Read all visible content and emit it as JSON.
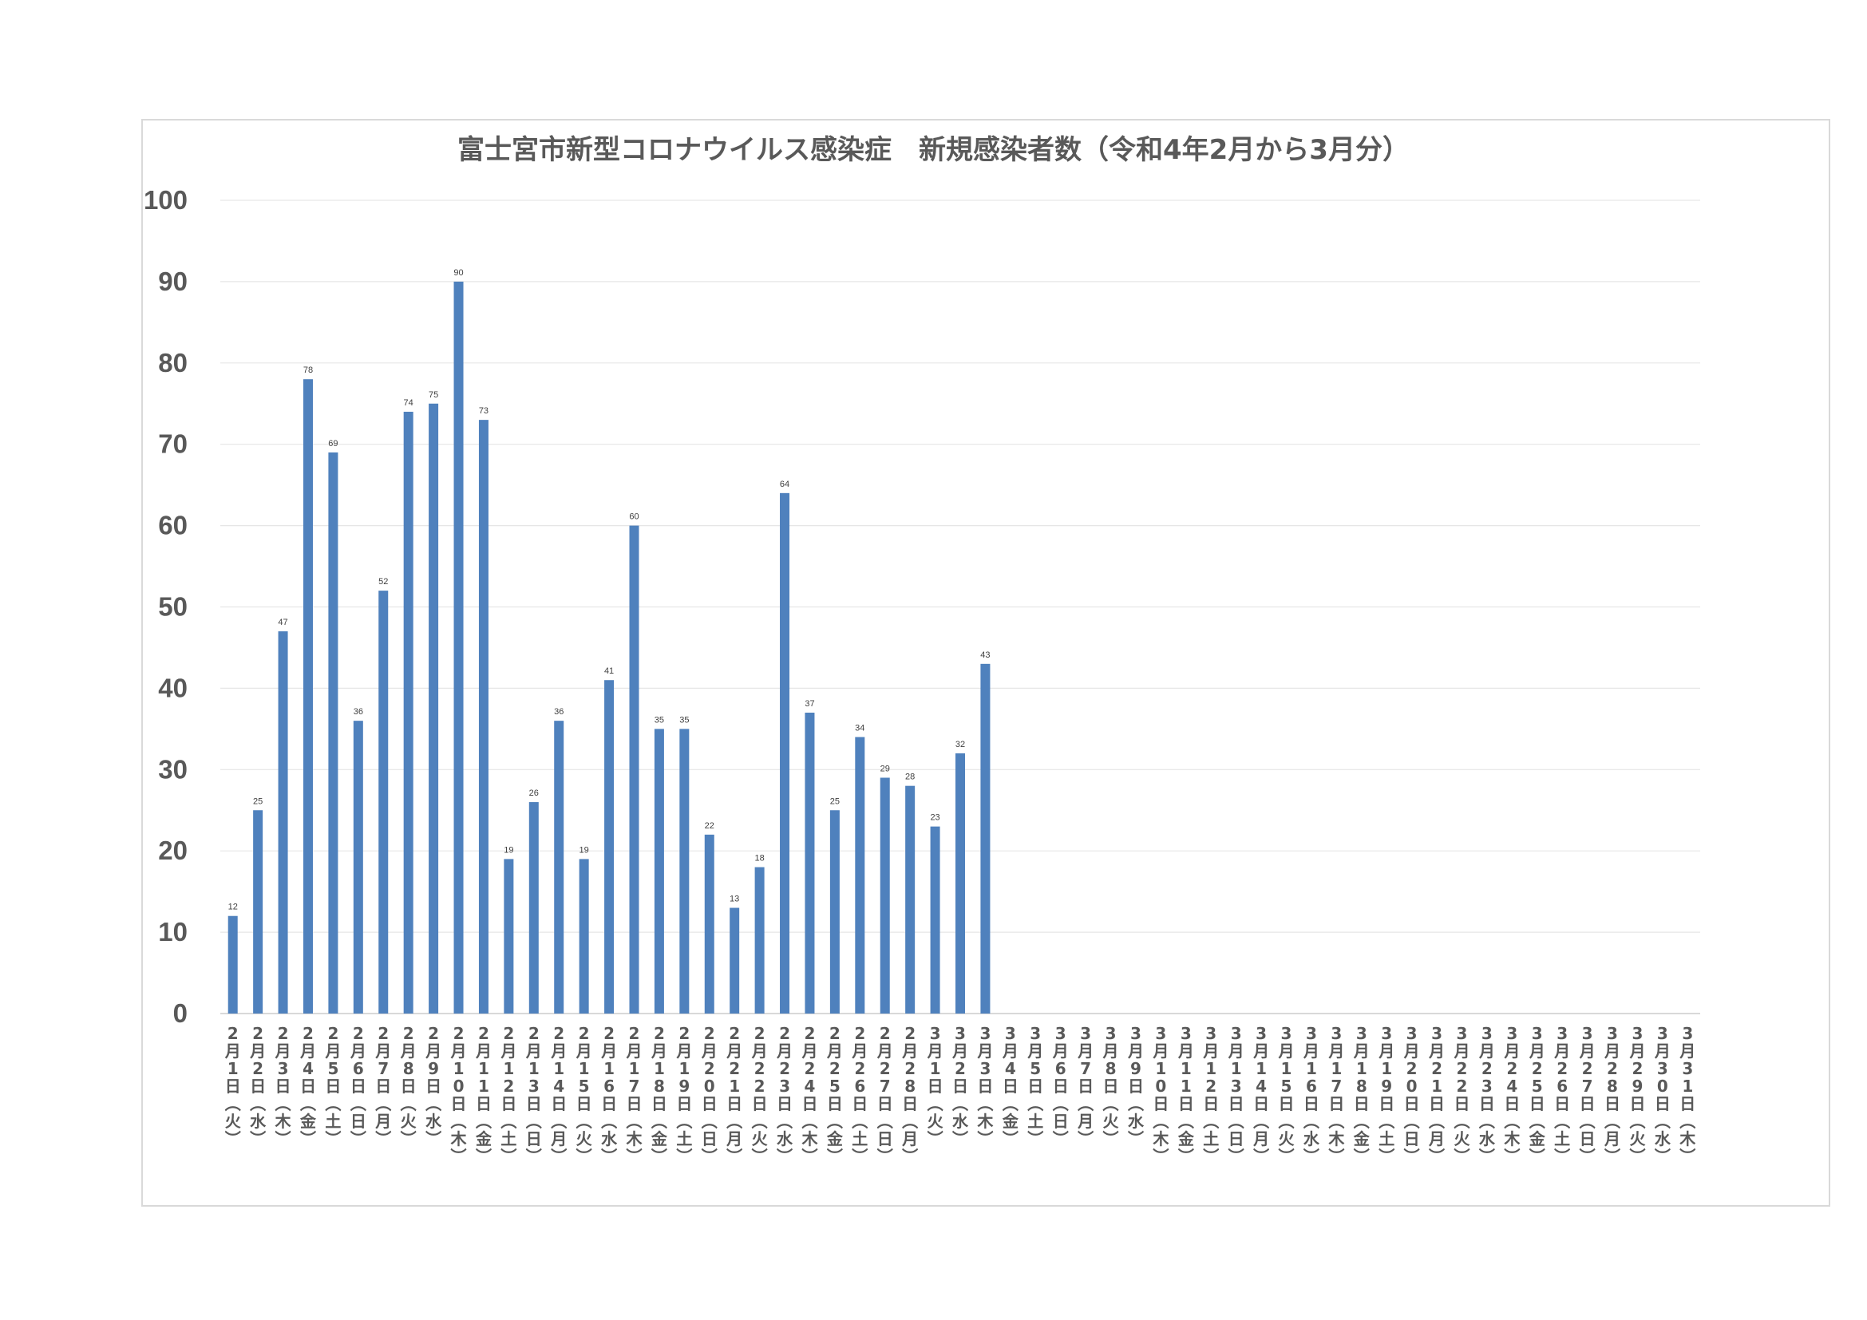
{
  "chart_data": {
    "type": "bar",
    "title": "富士宮市新型コロナウイルス感染症　新規感染者数（令和4年2月から3月分）",
    "xlabel": "",
    "ylabel": "",
    "ylim": [
      0,
      100
    ],
    "yticks": [
      0,
      10,
      20,
      30,
      40,
      50,
      60,
      70,
      80,
      90,
      100
    ],
    "grid": true,
    "bar_color": "#4f81bd",
    "categories": [
      "2月1日(火)",
      "2月2日(水)",
      "2月3日(木)",
      "2月4日(金)",
      "2月5日(土)",
      "2月6日(日)",
      "2月7日(月)",
      "2月8日(火)",
      "2月9日(水)",
      "2月10日(木)",
      "2月11日(金)",
      "2月12日(土)",
      "2月13日(日)",
      "2月14日(月)",
      "2月15日(火)",
      "2月16日(水)",
      "2月17日(木)",
      "2月18日(金)",
      "2月19日(土)",
      "2月20日(日)",
      "2月21日(月)",
      "2月22日(火)",
      "2月23日(水)",
      "2月24日(木)",
      "2月25日(金)",
      "2月26日(土)",
      "2月27日(日)",
      "2月28日(月)",
      "3月1日(火)",
      "3月2日(水)",
      "3月3日(木)",
      "3月4日(金)",
      "3月5日(土)",
      "3月6日(日)",
      "3月7日(月)",
      "3月8日(火)",
      "3月9日(水)",
      "3月10日(木)",
      "3月11日(金)",
      "3月12日(土)",
      "3月13日(日)",
      "3月14日(月)",
      "3月15日(火)",
      "3月16日(水)",
      "3月17日(木)",
      "3月18日(金)",
      "3月19日(土)",
      "3月20日(日)",
      "3月21日(月)",
      "3月22日(火)",
      "3月23日(水)",
      "3月24日(木)",
      "3月25日(金)",
      "3月26日(土)",
      "3月27日(日)",
      "3月28日(月)",
      "3月29日(火)",
      "3月30日(水)",
      "3月31日(木)"
    ],
    "values": [
      12,
      25,
      47,
      78,
      69,
      36,
      52,
      74,
      75,
      90,
      73,
      19,
      26,
      36,
      19,
      41,
      60,
      35,
      35,
      22,
      13,
      18,
      64,
      37,
      25,
      34,
      29,
      28,
      23,
      32,
      43,
      null,
      null,
      null,
      null,
      null,
      null,
      null,
      null,
      null,
      null,
      null,
      null,
      null,
      null,
      null,
      null,
      null,
      null,
      null,
      null,
      null,
      null,
      null,
      null,
      null,
      null,
      null,
      null
    ]
  }
}
